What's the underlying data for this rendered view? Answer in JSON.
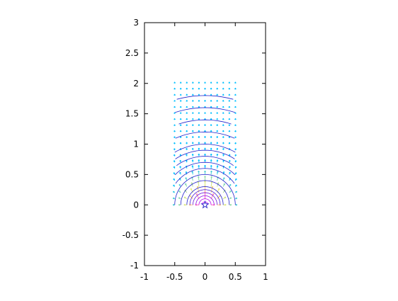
{
  "chart_data": {
    "type": "vector_field_with_contours",
    "title": "",
    "xlabel": "",
    "ylabel": "",
    "xlim": [
      -1,
      1
    ],
    "ylim": [
      -1,
      3
    ],
    "x_ticks": [
      -1,
      -0.5,
      0,
      0.5,
      1
    ],
    "x_tick_labels": [
      "-1",
      "-0.5",
      "0",
      "0.5",
      "1"
    ],
    "y_ticks": [
      -1,
      -0.5,
      0,
      0.5,
      1,
      1.5,
      2,
      2.5,
      3
    ],
    "y_tick_labels": [
      "-1",
      "-0.5",
      "0",
      "0.5",
      "1",
      "1.5",
      "2",
      "2.5",
      "3"
    ],
    "grid": false,
    "source_point": [
      0,
      0
    ],
    "field_region": {
      "x": [
        -0.5,
        0.5
      ],
      "y": [
        0,
        2
      ]
    },
    "arrow_grid": {
      "x": [
        -0.5,
        -0.4,
        -0.3,
        -0.2,
        -0.1,
        0,
        0.1,
        0.2,
        0.3,
        0.4,
        0.5
      ],
      "y": [
        0,
        0.1,
        0.2,
        0.3,
        0.4,
        0.5,
        0.6,
        0.7,
        0.8,
        0.9,
        1.0,
        1.1,
        1.2,
        1.3,
        1.4,
        1.5,
        1.6,
        1.7,
        1.8,
        1.9,
        2.0
      ]
    },
    "contour_radii": [
      0.05,
      0.1,
      0.15,
      0.2,
      0.25,
      0.3,
      0.4,
      0.5,
      0.6,
      0.7,
      0.8,
      0.9,
      1.0,
      1.2,
      1.4,
      1.6,
      1.8
    ],
    "colors": {
      "near": "#ff00ff",
      "mid": "#ffee66",
      "far": "#00bfff",
      "contour": "#2222cc",
      "axis": "#000000",
      "source_marker": "#3333cc"
    }
  }
}
